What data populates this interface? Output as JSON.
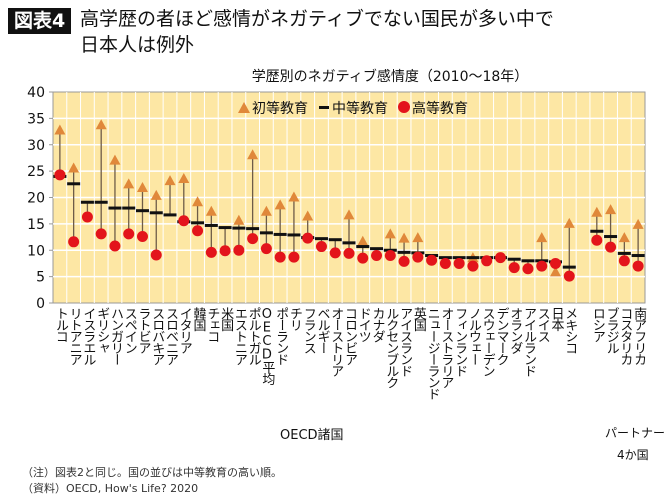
{
  "header": {
    "badge": "図表4",
    "title_line1": "高学歴の者ほど感情がネガティブでない国民が多い中で",
    "title_line2": "日本人は例外"
  },
  "chart_data": {
    "type": "scatter",
    "title": "学歴別のネガティブ感情度（2010〜18年）",
    "ylim": [
      0,
      40
    ],
    "yticks": [
      "0",
      "5",
      "10",
      "15",
      "20",
      "25",
      "30",
      "35",
      "40"
    ],
    "grid": true,
    "legend_position": "top-right",
    "colors": {
      "primary": "#e0883a",
      "secondary": "#111111",
      "tertiary": "#e3141b",
      "background": "#fde7a4",
      "connector": "#6e5c48"
    },
    "series": [
      {
        "name": "初等教育",
        "marker": "triangle"
      },
      {
        "name": "中等教育",
        "marker": "dash"
      },
      {
        "name": "高等教育",
        "marker": "circle"
      }
    ],
    "groups": [
      {
        "name": "OECD諸国",
        "categories": [
          "トルコ",
          "リトアニア",
          "イスラエル",
          "ギリシャ",
          "ハンガリー",
          "スペイン",
          "ラトビア",
          "スロバキア",
          "スロベニア",
          "イタリア",
          "韓国",
          "チェコ",
          "米国",
          "エストニア",
          "ポルトガル",
          "OECD平均",
          "ポーランド",
          "チリ",
          "フランス",
          "ベルギー",
          "オーストリア",
          "コロンビア",
          "ドイツ",
          "カナダ",
          "ルクセンブルク",
          "アイスランド",
          "英国",
          "ニュージーランド",
          "オーストラリア",
          "フィンランド",
          "ノルウェー",
          "スウェーデン",
          "デンマーク",
          "オランダ",
          "アイルランド",
          "スイス",
          "日本",
          "メキシコ"
        ],
        "primary": [
          32.7,
          25.5,
          null,
          33.7,
          27.0,
          22.5,
          21.8,
          20.3,
          23.1,
          23.5,
          19.1,
          17.3,
          null,
          15.6,
          28.0,
          17.3,
          18.5,
          20.0,
          16.4,
          null,
          null,
          16.6,
          11.6,
          null,
          13.0,
          12.2,
          12.3,
          null,
          null,
          null,
          8.5,
          null,
          null,
          null,
          null,
          12.3,
          5.8,
          15.0
        ],
        "secondary": [
          24.0,
          22.6,
          19.1,
          19.1,
          18.0,
          18.0,
          17.5,
          17.1,
          16.7,
          15.4,
          15.2,
          14.7,
          14.3,
          14.2,
          14.1,
          13.3,
          13.0,
          12.9,
          12.4,
          12.2,
          12.0,
          11.4,
          10.7,
          10.3,
          10.0,
          9.6,
          9.5,
          9.0,
          8.6,
          8.6,
          8.6,
          8.6,
          8.6,
          8.3,
          8.0,
          8.0,
          7.8,
          6.8
        ],
        "tertiary": [
          24.3,
          11.6,
          16.3,
          13.1,
          10.8,
          13.1,
          12.6,
          9.1,
          null,
          15.6,
          13.7,
          9.6,
          9.9,
          10.0,
          12.2,
          10.3,
          8.7,
          8.7,
          12.3,
          10.7,
          9.5,
          9.4,
          8.5,
          9.0,
          9.0,
          7.9,
          8.7,
          8.1,
          7.5,
          7.5,
          7.0,
          8.0,
          8.6,
          6.7,
          6.5,
          7.0,
          7.5,
          5.1
        ]
      },
      {
        "name": "パートナー",
        "name_line2": "4か国",
        "categories": [
          "ロシア",
          "ブラジル",
          "コスタリカ",
          "南アフリカ"
        ],
        "primary": [
          17.1,
          17.6,
          12.3,
          14.8
        ],
        "secondary": [
          13.6,
          12.6,
          9.4,
          9.0
        ],
        "tertiary": [
          11.9,
          10.6,
          8.0,
          7.0
        ]
      }
    ]
  },
  "notes": {
    "note": "（注）図表2と同じ。国の並びは中等教育の高い順。",
    "source": "（資料）OECD, How's Life? 2020"
  }
}
